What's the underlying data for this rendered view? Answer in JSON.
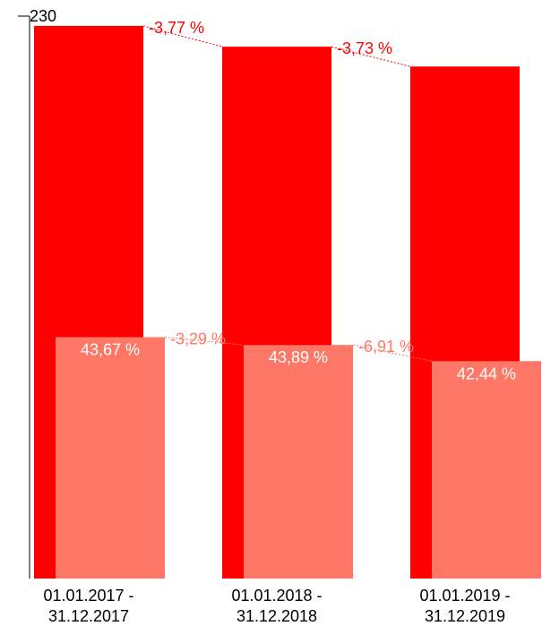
{
  "chart_data": {
    "type": "bar",
    "categories": [
      [
        "01.01.2017 -",
        "31.12.2017"
      ],
      [
        "01.01.2018 -",
        "31.12.2018"
      ],
      [
        "01.01.2019 -",
        "31.12.2019"
      ]
    ],
    "ylim": [
      0,
      230
    ],
    "yticks": [
      "230"
    ],
    "series": [
      {
        "color": "#ff0000",
        "values": [
          226,
          217.5,
          209.4
        ],
        "changes": [
          "-3,77 %",
          "-3,73 %"
        ]
      },
      {
        "color": "#ff7766",
        "values": [
          98.7,
          95.5,
          88.9
        ],
        "labels": [
          "43,67 %",
          "43,89 %",
          "42,44 %"
        ],
        "changes": [
          "-3,29 %",
          "-6,91 %"
        ]
      }
    ]
  }
}
